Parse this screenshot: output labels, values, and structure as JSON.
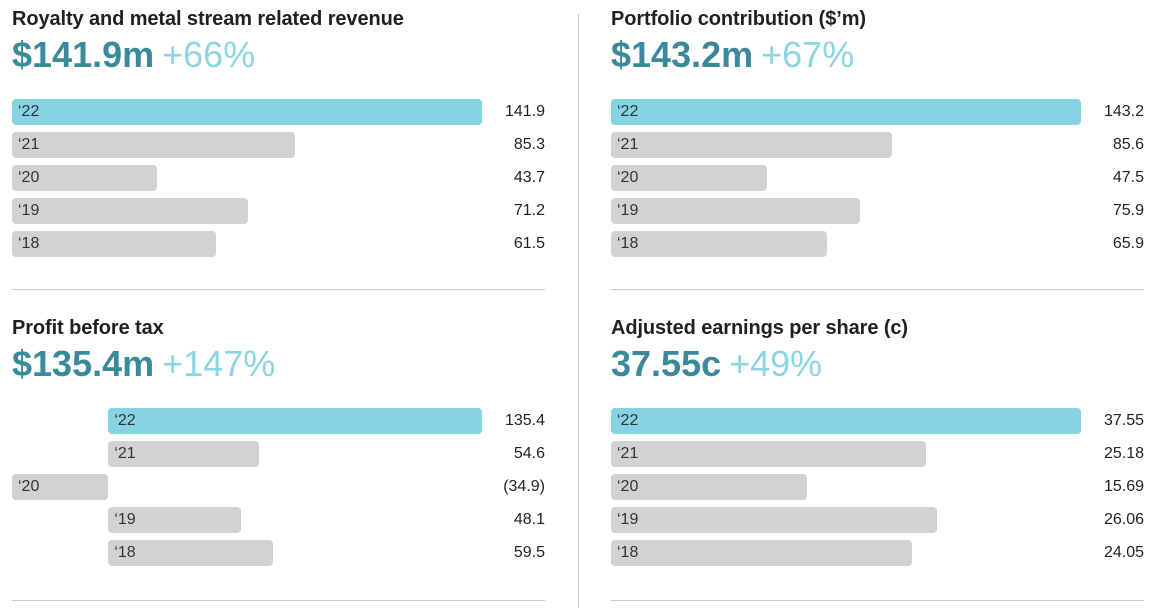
{
  "colors": {
    "headline": "#3b8a9b",
    "change": "#8dd4e4",
    "current_bar": "#85d3e3",
    "prior_bar": "#d1d2d4"
  },
  "chart_data": [
    {
      "type": "bar",
      "orientation": "horizontal",
      "title": "Royalty and metal stream related revenue",
      "headline": "$141.9m",
      "change": "+66%",
      "categories": [
        "‘22",
        "‘21",
        "‘20",
        "‘19",
        "‘18"
      ],
      "values": [
        141.9,
        85.3,
        43.7,
        71.2,
        61.5
      ],
      "value_labels": [
        "141.9",
        "85.3",
        "43.7",
        "71.2",
        "61.5"
      ]
    },
    {
      "type": "bar",
      "orientation": "horizontal",
      "title": "Portfolio contribution ($’m)",
      "headline": "$143.2m",
      "change": "+67%",
      "categories": [
        "‘22",
        "‘21",
        "‘20",
        "‘19",
        "‘18"
      ],
      "values": [
        143.2,
        85.6,
        47.5,
        75.9,
        65.9
      ],
      "value_labels": [
        "143.2",
        "85.6",
        "47.5",
        "75.9",
        "65.9"
      ]
    },
    {
      "type": "bar",
      "orientation": "horizontal",
      "title": "Profit before tax",
      "headline": "$135.4m",
      "change": "+147%",
      "categories": [
        "‘22",
        "‘21",
        "‘20",
        "‘19",
        "‘18"
      ],
      "values": [
        135.4,
        54.6,
        -34.9,
        48.1,
        59.5
      ],
      "value_labels": [
        "135.4",
        "54.6",
        "(34.9)",
        "48.1",
        "59.5"
      ]
    },
    {
      "type": "bar",
      "orientation": "horizontal",
      "title": "Adjusted earnings per share (c)",
      "headline": "37.55c",
      "change": "+49%",
      "categories": [
        "‘22",
        "‘21",
        "‘20",
        "‘19",
        "‘18"
      ],
      "values": [
        37.55,
        25.18,
        15.69,
        26.06,
        24.05
      ],
      "value_labels": [
        "37.55",
        "25.18",
        "15.69",
        "26.06",
        "24.05"
      ]
    }
  ]
}
